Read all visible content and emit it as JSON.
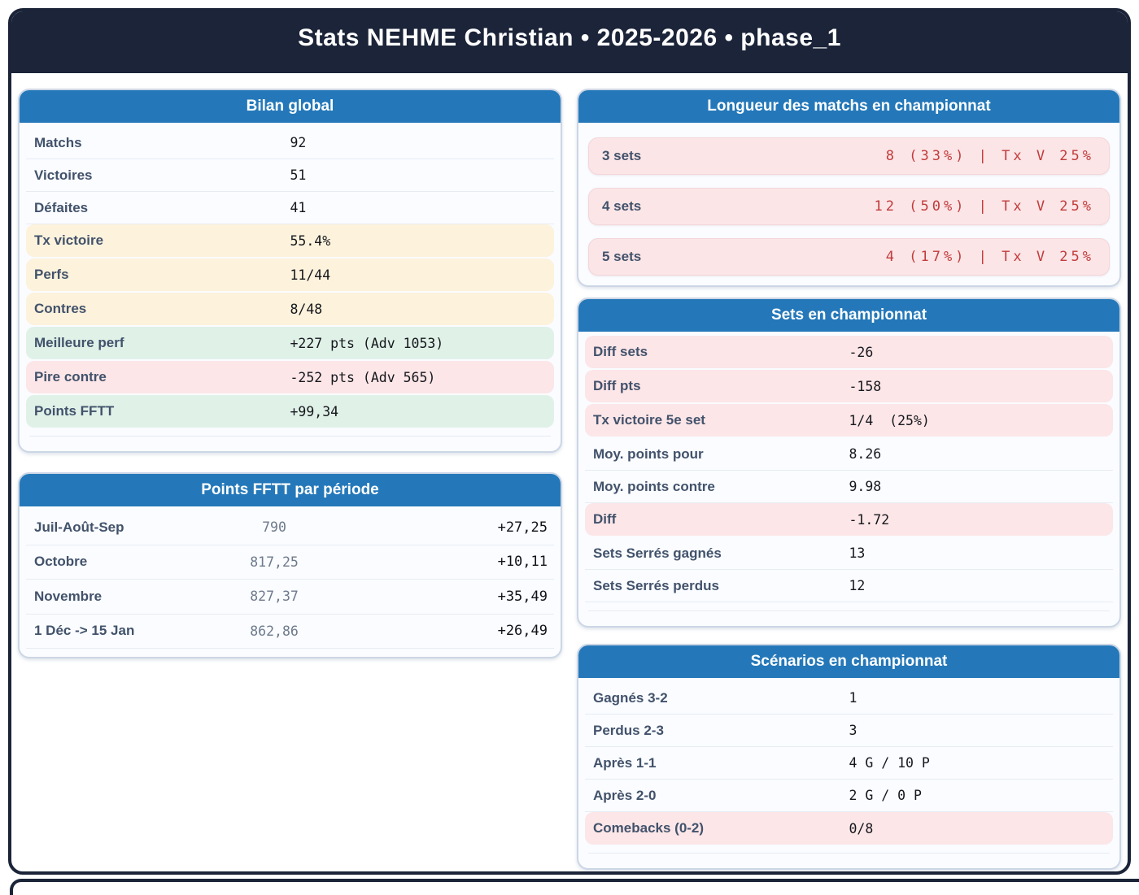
{
  "page": {
    "title": "Stats NEHME Christian • 2025-2026 • phase_1"
  },
  "colors": {
    "navy": "#1b2438",
    "blue": "#2478b9",
    "red": "#c23b3b",
    "yellow": "#fdf2dc",
    "green": "#e0f1e8",
    "pink": "#fce6e8",
    "label": "#42526b",
    "divider": "#e7ecf3"
  },
  "panels": {
    "bilan": {
      "title": "Bilan global",
      "rows": [
        {
          "label": "Matchs",
          "value": "92",
          "bg": "plain"
        },
        {
          "label": "Victoires",
          "value": "51",
          "bg": "plain"
        },
        {
          "label": "Défaites",
          "value": "41",
          "bg": "plain"
        },
        {
          "label": "Tx victoire",
          "value": "55.4%",
          "bg": "yellow"
        },
        {
          "label": "Perfs",
          "value": "11/44",
          "bg": "yellow"
        },
        {
          "label": "Contres",
          "value": "8/48",
          "bg": "yellow"
        },
        {
          "label": "Meilleure perf",
          "value": "+227 pts (Adv 1053)",
          "bg": "green"
        },
        {
          "label": "Pire contre",
          "value": "-252 pts (Adv 565)",
          "bg": "pink"
        },
        {
          "label": "Points FFTT",
          "value": "+99,34",
          "bg": "green"
        }
      ]
    },
    "periode": {
      "title": "Points FFTT par période",
      "rows": [
        {
          "label": "Juil-Août-Sep",
          "points": "790",
          "delta": "+27,25"
        },
        {
          "label": "Octobre",
          "points": "817,25",
          "delta": "+10,11"
        },
        {
          "label": "Novembre",
          "points": "827,37",
          "delta": "+35,49"
        },
        {
          "label": "1 Déc -> 15 Jan",
          "points": "862,86",
          "delta": "+26,49"
        }
      ]
    },
    "longueur": {
      "title": "Longueur des matchs en championnat",
      "rows": [
        {
          "label": "3 sets",
          "value": "8 (33%) | Tx V 25%"
        },
        {
          "label": "4 sets",
          "value": "12 (50%) | Tx V 25%"
        },
        {
          "label": "5 sets",
          "value": "4 (17%) | Tx V 25%"
        }
      ]
    },
    "sets": {
      "title": "Sets en championnat",
      "rows": [
        {
          "label": "Diff sets",
          "value": "-26",
          "bg": "pink"
        },
        {
          "label": "Diff pts",
          "value": "-158",
          "bg": "pink"
        },
        {
          "label": "Tx victoire 5e set",
          "value": "1/4  (25%)",
          "bg": "pink"
        },
        {
          "label": "Moy. points pour",
          "value": "8.26",
          "bg": "plain"
        },
        {
          "label": "Moy. points contre",
          "value": "9.98",
          "bg": "plain"
        },
        {
          "label": "Diff",
          "value": "-1.72",
          "bg": "pink"
        },
        {
          "label": "Sets Serrés gagnés",
          "value": "13",
          "bg": "plain"
        },
        {
          "label": "Sets Serrés perdus",
          "value": "12",
          "bg": "plain"
        }
      ]
    },
    "scenarios": {
      "title": "Scénarios en championnat",
      "rows": [
        {
          "label": "Gagnés 3-2",
          "value": "1",
          "bg": "plain"
        },
        {
          "label": "Perdus 2-3",
          "value": "3",
          "bg": "plain"
        },
        {
          "label": "Après 1-1",
          "value": "4 G / 10 P",
          "bg": "plain"
        },
        {
          "label": "Après 2-0",
          "value": "2 G / 0 P",
          "bg": "plain"
        },
        {
          "label": "Comebacks (0-2)",
          "value": "0/8",
          "bg": "pink"
        }
      ]
    }
  }
}
